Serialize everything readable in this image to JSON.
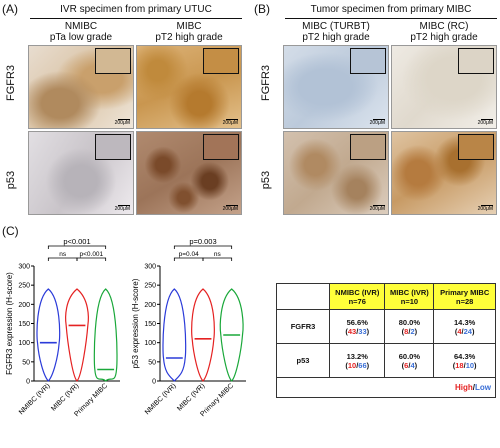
{
  "panelA": {
    "letter": "(A)",
    "title": "IVR specimen from primary UTUC",
    "cols": [
      {
        "line1": "NMIBC",
        "line2": "pTa low grade"
      },
      {
        "line1": "MIBC",
        "line2": "pT2 high grade"
      }
    ],
    "rows": [
      "FGFR3",
      "p53"
    ],
    "scale": "200μM",
    "inset_scale": "50μM"
  },
  "panelB": {
    "letter": "(B)",
    "title": "Tumor specimen from primary MIBC",
    "cols": [
      {
        "line1": "MIBC (TURBT)",
        "line2": "pT2 high grade"
      },
      {
        "line1": "MIBC (RC)",
        "line2": "pT2 high grade"
      }
    ],
    "rows": [
      "FGFR3",
      "p53"
    ],
    "scale": "200μM",
    "inset_scale": "50μM"
  },
  "panelC": {
    "letter": "(C)",
    "chart_data": [
      {
        "type": "violin",
        "ylabel": "FGFR3 expression (H-score)",
        "categories": [
          "NMIBC (IVR)",
          "MIBC (IVR)",
          "Primary MIBC"
        ],
        "colors": [
          "#2b3bd9",
          "#e52222",
          "#1aa83a"
        ],
        "ylim": [
          0,
          300
        ],
        "yticks": [
          0,
          50,
          100,
          150,
          200,
          250,
          300
        ],
        "medians": [
          100,
          145,
          30
        ],
        "annotations": [
          {
            "text": "p<0.001",
            "from": 0,
            "to": 2
          },
          {
            "text": "ns",
            "from": 0,
            "to": 1
          },
          {
            "text": "p<0.001",
            "from": 1,
            "to": 2
          }
        ]
      },
      {
        "type": "violin",
        "ylabel": "p53 expression (H-score)",
        "categories": [
          "NMIBC (IVR)",
          "MIBC (IVR)",
          "Primary MIBC"
        ],
        "colors": [
          "#2b3bd9",
          "#e52222",
          "#1aa83a"
        ],
        "ylim": [
          0,
          300
        ],
        "yticks": [
          0,
          50,
          100,
          150,
          200,
          250,
          300
        ],
        "medians": [
          60,
          110,
          120
        ],
        "annotations": [
          {
            "text": "p=0.003",
            "from": 0,
            "to": 2
          },
          {
            "text": "p=0.04",
            "from": 0,
            "to": 1
          },
          {
            "text": "ns",
            "from": 1,
            "to": 2
          }
        ]
      }
    ]
  },
  "table": {
    "headers": [
      "NMIBC (IVR)\nn=76",
      "MIBC (IVR)\nn=10",
      "Primary MIBC\nn=28"
    ],
    "rows": [
      {
        "label": "FGFR3",
        "cells": [
          {
            "pct": "56.6%",
            "high": "43",
            "low": "33"
          },
          {
            "pct": "80.0%",
            "high": "8",
            "low": "2"
          },
          {
            "pct": "14.3%",
            "high": "4",
            "low": "24"
          }
        ]
      },
      {
        "label": "p53",
        "cells": [
          {
            "pct": "13.2%",
            "high": "10",
            "low": "66"
          },
          {
            "pct": "60.0%",
            "high": "6",
            "low": "4"
          },
          {
            "pct": "64.3%",
            "high": "18",
            "low": "10"
          }
        ]
      }
    ],
    "legend_high": "High",
    "legend_sep": "/",
    "legend_low": "Low"
  }
}
